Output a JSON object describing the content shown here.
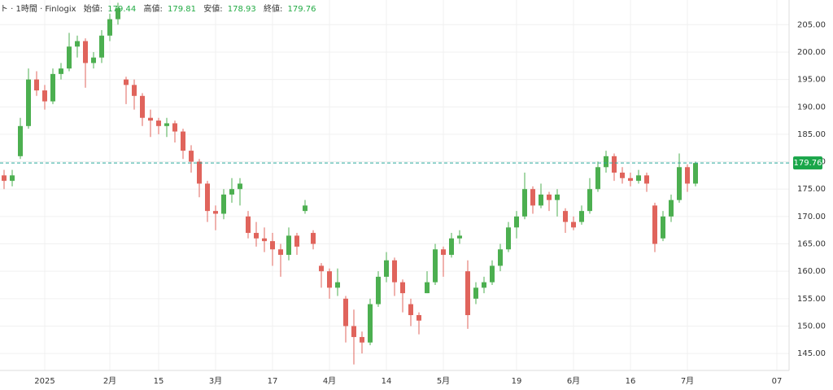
{
  "chart_data": {
    "type": "candlestick",
    "header": {
      "symbol": "ト · 1時間 · Finlogix",
      "labels": [
        "始値:",
        "高値:",
        "安値:",
        "終値:"
      ],
      "values": [
        179.44,
        179.81,
        178.93,
        179.76
      ]
    },
    "last_price": 179.76,
    "up_color": "#4caf50",
    "down_color": "#e0645c",
    "last_color": "#1aa64a",
    "grid": true,
    "ylim": [
      141.9,
      209.5
    ],
    "yticks": [
      {
        "value": 145,
        "label": "145.00"
      },
      {
        "value": 150,
        "label": "150.00"
      },
      {
        "value": 155,
        "label": "155.00"
      },
      {
        "value": 160,
        "label": "160.00"
      },
      {
        "value": 165,
        "label": "165.00"
      },
      {
        "value": 170,
        "label": "170.00"
      },
      {
        "value": 175,
        "label": "175.00"
      },
      {
        "value": 180,
        "label": "180.00"
      },
      {
        "value": 185,
        "label": "185.00"
      },
      {
        "value": 190,
        "label": "190.00"
      },
      {
        "value": 195,
        "label": "195.00"
      },
      {
        "value": 200,
        "label": "200.00"
      },
      {
        "value": 205,
        "label": "205.00"
      }
    ],
    "categories": [
      null,
      null,
      null,
      null,
      null,
      "2025",
      null,
      null,
      null,
      null,
      null,
      null,
      null,
      "2月",
      null,
      null,
      null,
      null,
      null,
      "15",
      null,
      null,
      null,
      null,
      null,
      null,
      "3月",
      null,
      null,
      null,
      null,
      null,
      null,
      "17",
      null,
      null,
      null,
      null,
      null,
      null,
      "4月",
      null,
      null,
      null,
      null,
      null,
      null,
      "14",
      null,
      null,
      null,
      null,
      null,
      null,
      "5月",
      null,
      null,
      null,
      null,
      null,
      null,
      null,
      null,
      "19",
      null,
      null,
      null,
      null,
      null,
      null,
      "6月",
      null,
      null,
      null,
      null,
      null,
      null,
      "16",
      null,
      null,
      null,
      null,
      null,
      null,
      "7月",
      null,
      null,
      null,
      null,
      null,
      null,
      null,
      null,
      null,
      null,
      "07",
      null
    ],
    "open": [
      177.5,
      176.5,
      181,
      186.5,
      195,
      193,
      191,
      196,
      197,
      201,
      202,
      198,
      199,
      203,
      206,
      195,
      194,
      192,
      188,
      187.5,
      186.5,
      187,
      185.5,
      182,
      180,
      176,
      171,
      170.5,
      174,
      175,
      170,
      167,
      166,
      165.5,
      164,
      163,
      166.5,
      171,
      167,
      161,
      160,
      157,
      155,
      150,
      148,
      147,
      154,
      159,
      162,
      158,
      154,
      152,
      156,
      158,
      164,
      163,
      166,
      160,
      155,
      157,
      158,
      161,
      164,
      168,
      170,
      175,
      172,
      174,
      173,
      171,
      169,
      169,
      171,
      175,
      179,
      181,
      178,
      177,
      176.5,
      177.5,
      172,
      166,
      170,
      173,
      179,
      176,
      null,
      null,
      null,
      null,
      null,
      null,
      null,
      null,
      null,
      null,
      null
    ],
    "high": [
      178.5,
      178.5,
      188,
      197,
      196.5,
      194,
      197,
      198,
      203.5,
      203,
      202.5,
      200,
      204,
      207,
      209,
      195.5,
      195,
      192.5,
      189.5,
      188,
      188,
      187.5,
      186,
      183,
      180.5,
      176.5,
      172,
      175,
      177,
      177,
      171,
      169,
      168,
      167,
      165,
      168,
      167,
      173,
      167.5,
      161.5,
      160.5,
      160.5,
      155.5,
      153,
      149,
      155,
      160,
      163.5,
      162.5,
      158.5,
      155,
      152.5,
      160,
      165,
      164.5,
      167,
      167.5,
      162,
      158,
      159,
      162,
      165,
      169,
      171,
      178,
      175.5,
      176,
      174.5,
      175,
      171.5,
      170,
      172,
      177,
      180,
      182,
      181.5,
      179,
      178,
      178.5,
      178,
      172.5,
      171,
      174,
      181.5,
      179.5,
      180,
      null,
      null,
      null,
      null,
      null,
      null,
      null,
      null,
      null,
      null,
      null
    ],
    "low": [
      175,
      175.5,
      180.5,
      186,
      192,
      189.5,
      190.5,
      195,
      196.5,
      199,
      193.5,
      197,
      198,
      202,
      205,
      190.5,
      189.5,
      186.5,
      184.5,
      185,
      184.5,
      183.5,
      180.5,
      178,
      173.5,
      169,
      167.5,
      169.5,
      172.5,
      172,
      166,
      164.5,
      163.5,
      161,
      159,
      162,
      163,
      170.5,
      164,
      157,
      155,
      155.5,
      147,
      143,
      145,
      146.5,
      153.5,
      158,
      155.5,
      152.5,
      150,
      148.5,
      156,
      157.5,
      159,
      162.5,
      165,
      149.5,
      154,
      156,
      157.5,
      160,
      163.5,
      166,
      169.5,
      170.5,
      171.5,
      171,
      170,
      167,
      167.5,
      168.5,
      170.5,
      174.5,
      178,
      176.5,
      176,
      175.5,
      176,
      174.5,
      163.5,
      165.5,
      169,
      172.5,
      174.5,
      175.5,
      null,
      null,
      null,
      null,
      null,
      null,
      null,
      null,
      null,
      null,
      null
    ],
    "close": [
      176.5,
      177.5,
      186.5,
      195,
      193,
      191,
      196,
      197,
      201,
      202,
      198,
      199,
      203,
      206,
      208,
      194,
      192,
      188,
      187.5,
      186.5,
      187,
      185.5,
      182,
      180,
      176,
      171,
      170.5,
      174,
      175,
      176,
      167,
      166,
      165.5,
      164,
      163,
      166.5,
      164.5,
      172,
      165,
      160,
      157,
      158,
      150,
      148,
      147,
      154,
      159,
      162,
      158,
      156,
      152,
      151,
      158,
      164,
      163,
      166,
      166.5,
      152,
      157,
      158,
      161,
      164,
      168,
      170,
      175,
      172,
      174,
      173,
      174,
      169,
      168,
      171,
      175,
      179,
      181,
      178,
      177,
      176.5,
      177.5,
      176,
      165,
      170,
      173,
      179,
      176,
      179.76,
      null,
      null,
      null,
      null,
      null,
      null,
      null,
      null,
      null,
      null,
      null
    ]
  }
}
